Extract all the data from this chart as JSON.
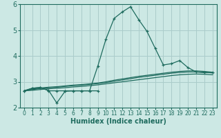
{
  "xlabel": "Humidex (Indice chaleur)",
  "background_color": "#cce8e4",
  "grid_color": "#aaccca",
  "line_color": "#1e6b5e",
  "xlim": [
    -0.5,
    23.5
  ],
  "ylim": [
    2,
    6
  ],
  "yticks": [
    2,
    3,
    4,
    5,
    6
  ],
  "xticks": [
    0,
    1,
    2,
    3,
    4,
    5,
    6,
    7,
    8,
    9,
    10,
    11,
    12,
    13,
    14,
    15,
    16,
    17,
    18,
    19,
    20,
    21,
    22,
    23
  ],
  "line_peak_x": [
    0,
    1,
    2,
    3,
    4,
    5,
    6,
    7,
    8,
    9,
    10,
    11,
    12,
    13,
    14,
    15,
    16,
    17,
    18,
    19,
    20,
    21,
    22,
    23
  ],
  "line_peak_y": [
    2.65,
    2.75,
    2.78,
    2.67,
    2.18,
    2.63,
    2.65,
    2.65,
    2.65,
    3.6,
    4.65,
    5.45,
    5.7,
    5.9,
    5.4,
    4.95,
    4.3,
    3.65,
    3.7,
    3.82,
    3.55,
    3.38,
    3.35,
    3.35
  ],
  "line_flat_x": [
    0,
    1,
    2,
    3,
    4,
    5,
    6,
    7,
    8,
    9
  ],
  "line_flat_y": [
    2.65,
    2.75,
    2.78,
    2.65,
    2.65,
    2.65,
    2.65,
    2.65,
    2.65,
    2.65
  ],
  "line_a_x": [
    0,
    1,
    2,
    3,
    4,
    5,
    6,
    7,
    8,
    9,
    10,
    11,
    12,
    13,
    14,
    15,
    16,
    17,
    18,
    19,
    20,
    21,
    22,
    23
  ],
  "line_a_y": [
    2.65,
    2.72,
    2.76,
    2.79,
    2.81,
    2.84,
    2.87,
    2.89,
    2.92,
    2.95,
    3.0,
    3.06,
    3.11,
    3.16,
    3.21,
    3.25,
    3.29,
    3.33,
    3.37,
    3.4,
    3.42,
    3.42,
    3.4,
    3.37
  ],
  "line_b_x": [
    0,
    1,
    2,
    3,
    4,
    5,
    6,
    7,
    8,
    9,
    10,
    11,
    12,
    13,
    14,
    15,
    16,
    17,
    18,
    19,
    20,
    21,
    22,
    23
  ],
  "line_b_y": [
    2.65,
    2.7,
    2.74,
    2.77,
    2.79,
    2.82,
    2.85,
    2.87,
    2.9,
    2.93,
    2.97,
    3.02,
    3.07,
    3.12,
    3.17,
    3.21,
    3.25,
    3.29,
    3.33,
    3.36,
    3.38,
    3.38,
    3.37,
    3.34
  ],
  "line_c_x": [
    0,
    1,
    2,
    3,
    4,
    5,
    6,
    7,
    8,
    9,
    10,
    11,
    12,
    13,
    14,
    15,
    16,
    17,
    18,
    19,
    20,
    21,
    22,
    23
  ],
  "line_c_y": [
    2.65,
    2.67,
    2.7,
    2.73,
    2.75,
    2.77,
    2.8,
    2.82,
    2.85,
    2.88,
    2.92,
    2.96,
    3.0,
    3.04,
    3.08,
    3.12,
    3.16,
    3.2,
    3.24,
    3.27,
    3.29,
    3.3,
    3.29,
    3.27
  ]
}
